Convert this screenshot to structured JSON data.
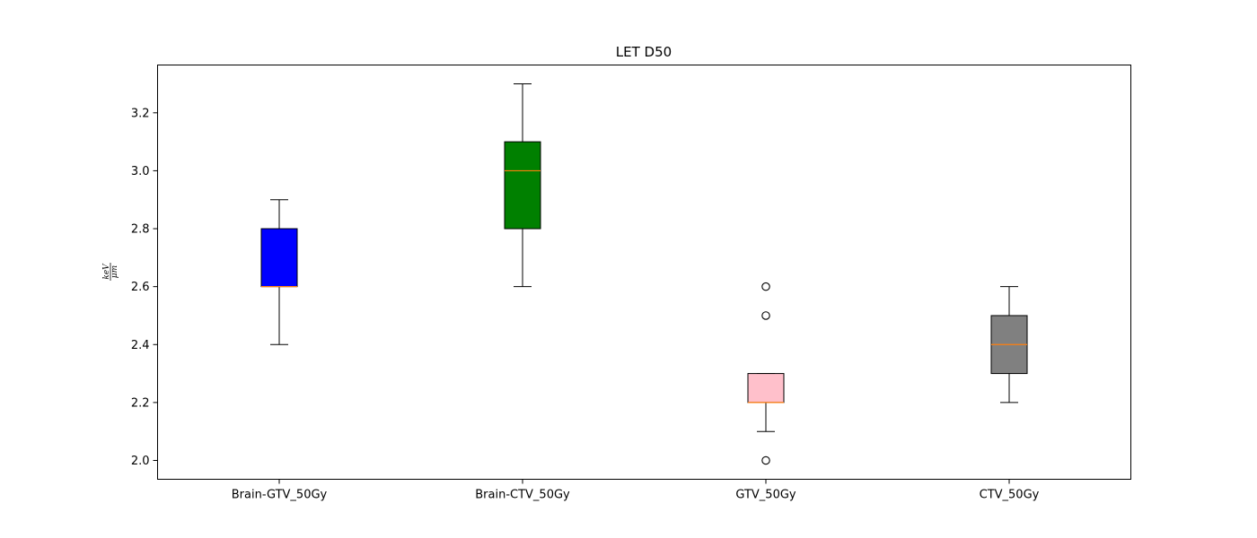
{
  "chart_data": {
    "type": "box",
    "title": "LET D50",
    "ylabel": {
      "numerator": "keV",
      "denominator": "μm"
    },
    "xlabel": "",
    "ylim": [
      1.935,
      3.365
    ],
    "yticks": [
      "2.0",
      "2.2",
      "2.4",
      "2.6",
      "2.8",
      "3.0",
      "3.2"
    ],
    "grid": false,
    "categories": [
      "Brain-GTV_50Gy",
      "Brain-CTV_50Gy",
      "GTV_50Gy",
      "CTV_50Gy"
    ],
    "boxes": [
      {
        "category": "Brain-GTV_50Gy",
        "whislo": 2.4,
        "q1": 2.6,
        "median": 2.6,
        "q3": 2.8,
        "whishi": 2.9,
        "outliers": [],
        "color": "#0000ff"
      },
      {
        "category": "Brain-CTV_50Gy",
        "whislo": 2.6,
        "q1": 2.8,
        "median": 3.0,
        "q3": 3.1,
        "whishi": 3.3,
        "outliers": [],
        "color": "#008000"
      },
      {
        "category": "GTV_50Gy",
        "whislo": 2.1,
        "q1": 2.2,
        "median": 2.2,
        "q3": 2.3,
        "whishi": 2.3,
        "outliers": [
          2.0,
          2.5,
          2.6
        ],
        "color": "#ffc0cb"
      },
      {
        "category": "CTV_50Gy",
        "whislo": 2.2,
        "q1": 2.3,
        "median": 2.4,
        "q3": 2.5,
        "whishi": 2.6,
        "outliers": [],
        "color": "#808080"
      }
    ],
    "median_color": "#ff7f0e"
  }
}
